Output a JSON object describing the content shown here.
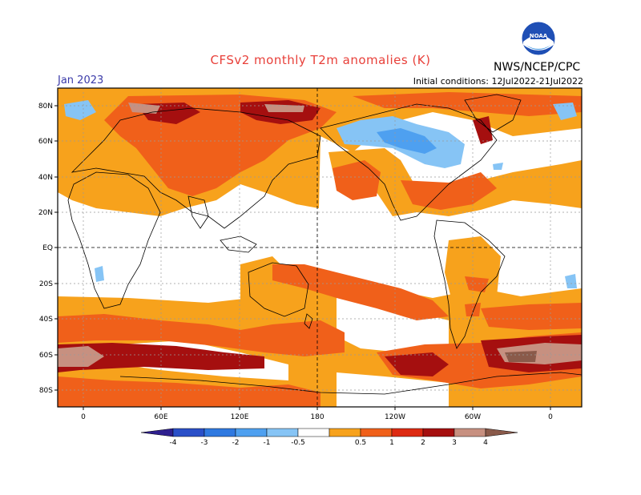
{
  "title": "CFSv2 monthly T2m anomalies (K)",
  "agency": "NWS/NCEP/CPC",
  "logo_text": "NOAA",
  "month": "Jan 2023",
  "initial_conditions": "Initial conditions: 12Jul2022-21Jul2022",
  "lat_labels": [
    "80N",
    "60N",
    "40N",
    "20N",
    "EQ",
    "20S",
    "40S",
    "60S",
    "80S"
  ],
  "lon_labels": [
    "0",
    "60E",
    "120E",
    "180",
    "120W",
    "60W",
    "0"
  ],
  "colorbar": {
    "ticks": [
      "-4",
      "-3",
      "-2",
      "-1",
      "-0.5",
      "0.5",
      "1",
      "2",
      "3",
      "4"
    ],
    "colors": [
      "#2e1f8f",
      "#2a4fc8",
      "#2f79e0",
      "#4ea0f0",
      "#86c4f5",
      "#ffffff",
      "#f7a21c",
      "#f0601a",
      "#dd2a12",
      "#a50f0f",
      "#c79080",
      "#8a5a4a"
    ]
  }
}
